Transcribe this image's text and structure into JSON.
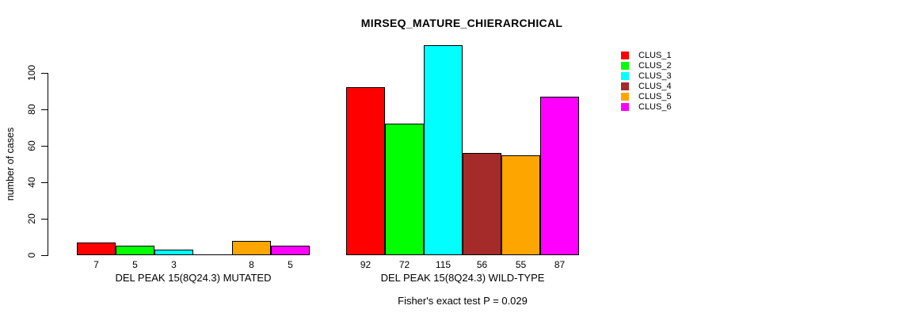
{
  "title": "MIRSEQ_MATURE_CHIERARCHICAL",
  "footer": "Fisher's exact test P = 0.029",
  "chart_data": {
    "type": "bar",
    "title": "MIRSEQ_MATURE_CHIERARCHICAL",
    "xlabel": "",
    "ylabel": "number of cases",
    "ylim": [
      0,
      115
    ],
    "yticks": [
      0,
      20,
      40,
      60,
      80,
      100
    ],
    "grid": false,
    "legend_position": "top-right",
    "categories": [
      "DEL PEAK 15(8Q24.3) MUTATED",
      "DEL PEAK 15(8Q24.3) WILD-TYPE"
    ],
    "series": [
      {
        "name": "CLUS_1",
        "color": "#FF0000",
        "values": [
          7,
          92
        ]
      },
      {
        "name": "CLUS_2",
        "color": "#00FF00",
        "values": [
          5,
          72
        ]
      },
      {
        "name": "CLUS_3",
        "color": "#00FFFF",
        "values": [
          3,
          115
        ]
      },
      {
        "name": "CLUS_4",
        "color": "#A52A2A",
        "values": [
          0,
          56
        ]
      },
      {
        "name": "CLUS_5",
        "color": "#FFA500",
        "values": [
          8,
          55
        ]
      },
      {
        "name": "CLUS_6",
        "color": "#FF00FF",
        "values": [
          5,
          87
        ]
      }
    ],
    "bar_value_labels": [
      "7",
      "5",
      "3",
      "",
      "8",
      "5",
      "92",
      "72",
      "115",
      "56",
      "55",
      "87"
    ],
    "zero_bar_note": "CLUS_4 in MUTATED group drawn as flat line at baseline with no value label",
    "annotation": "Fisher's exact test P = 0.029"
  }
}
